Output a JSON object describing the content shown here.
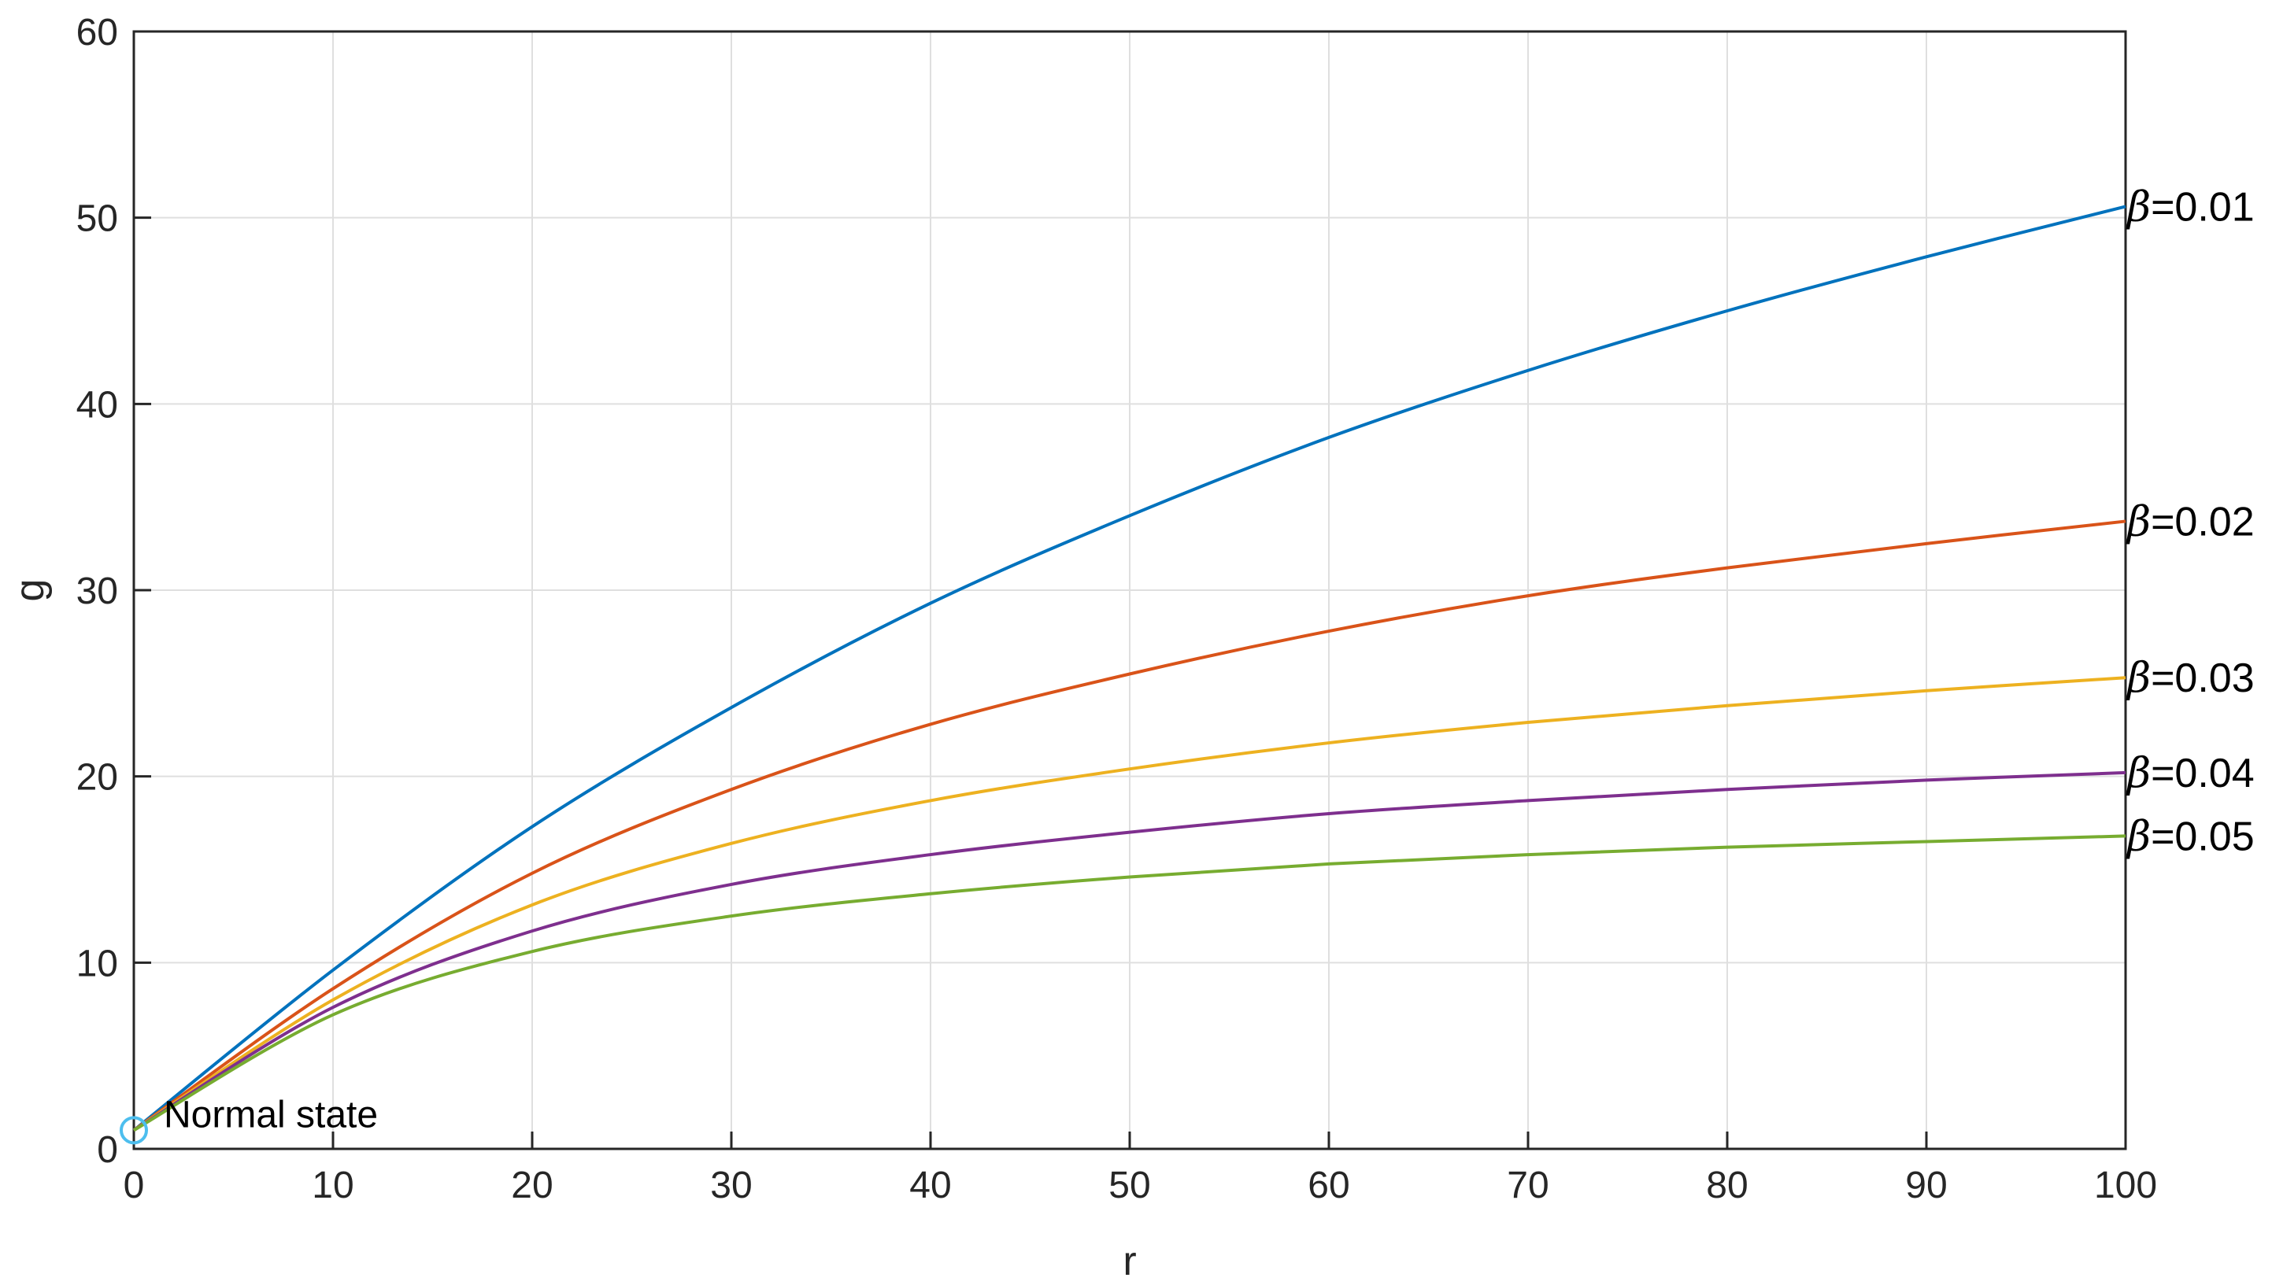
{
  "chart_data": {
    "type": "line",
    "xlabel": "r",
    "ylabel": "g",
    "xlim": [
      0,
      100
    ],
    "ylim": [
      0,
      60
    ],
    "xticks": [
      0,
      10,
      20,
      30,
      40,
      50,
      60,
      70,
      80,
      90,
      100
    ],
    "yticks": [
      0,
      10,
      20,
      30,
      40,
      50,
      60
    ],
    "grid": true,
    "x": [
      0,
      10,
      20,
      30,
      40,
      50,
      60,
      70,
      80,
      90,
      100
    ],
    "series": [
      {
        "name": "β=0.01",
        "beta_symbol": "β",
        "beta_value": "=0.01",
        "color": "#0072BD",
        "values": [
          1.0,
          9.6,
          17.3,
          23.7,
          29.3,
          34.0,
          38.2,
          41.8,
          45.0,
          47.9,
          50.6
        ]
      },
      {
        "name": "β=0.02",
        "beta_symbol": "β",
        "beta_value": "=0.02",
        "color": "#D95319",
        "values": [
          1.0,
          8.6,
          14.8,
          19.3,
          22.8,
          25.5,
          27.8,
          29.7,
          31.2,
          32.5,
          33.7
        ]
      },
      {
        "name": "β=0.03",
        "beta_symbol": "β",
        "beta_value": "=0.03",
        "color": "#EDB120",
        "values": [
          1.0,
          8.0,
          13.1,
          16.4,
          18.7,
          20.4,
          21.8,
          22.9,
          23.8,
          24.6,
          25.3
        ]
      },
      {
        "name": "β=0.04",
        "beta_symbol": "β",
        "beta_value": "=0.04",
        "color": "#7E2F8E",
        "values": [
          1.0,
          7.6,
          11.7,
          14.2,
          15.8,
          17.0,
          18.0,
          18.7,
          19.3,
          19.8,
          20.2
        ]
      },
      {
        "name": "β=0.05",
        "beta_symbol": "β",
        "beta_value": "=0.05",
        "color": "#77AC30",
        "values": [
          1.0,
          7.2,
          10.6,
          12.5,
          13.7,
          14.6,
          15.3,
          15.8,
          16.2,
          16.5,
          16.8
        ]
      }
    ],
    "annotation": {
      "text": "Normal state",
      "x": 0,
      "y": 1,
      "marker": "circle",
      "color": "#4DBEEE"
    },
    "colors": {
      "grid": "#DFDFDF",
      "axis": "#262626"
    }
  }
}
